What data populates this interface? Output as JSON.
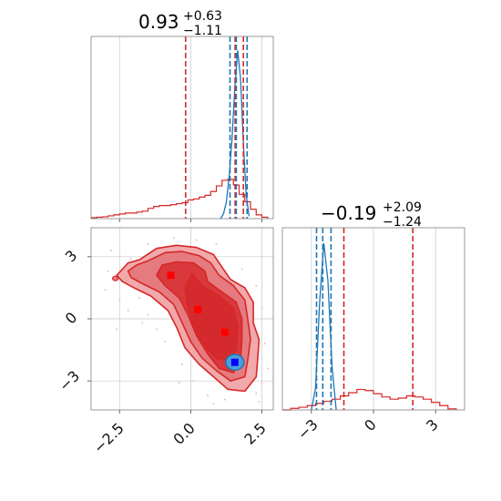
{
  "chart_data": {
    "type": "corner",
    "colors": {
      "red": "#d62728",
      "blue": "#1f77b4",
      "red_fill_light": "#f1a9ab",
      "red_fill_mid": "#e57b7e",
      "red_fill_dark": "#d9383c",
      "blue_fill": "#4d9fd8",
      "marker_red": "#ff0000",
      "marker_blue": "#0000ff",
      "grid": "#c8c8c8"
    },
    "params": [
      {
        "title_value": "0.93",
        "title_plus": "+0.63",
        "title_minus": "−1.11"
      },
      {
        "title_value": "−0.19",
        "title_plus": "+2.09",
        "title_minus": "−1.24"
      }
    ],
    "x_ticks_param1": [
      "−2.5",
      "0.0",
      "2.5"
    ],
    "x_tick_values_param1": [
      -2.5,
      0.0,
      2.5
    ],
    "y_ticks_param2": [
      "3",
      "0",
      "−3"
    ],
    "y_tick_values_param2": [
      3,
      0,
      -3
    ],
    "x_ticks_param2": [
      "−3",
      "0",
      "3"
    ],
    "x_tick_values_param2": [
      -3,
      0,
      3
    ],
    "xlim_param1": [
      -3.5,
      2.9
    ],
    "xlim_param2": [
      -4.4,
      4.4
    ],
    "ylim_param2": [
      -4.4,
      4.4
    ],
    "hist1_red": {
      "x": [
        -3.4,
        -3.2,
        -3.0,
        -2.8,
        -2.6,
        -2.4,
        -2.2,
        -2.0,
        -1.8,
        -1.6,
        -1.4,
        -1.2,
        -1.0,
        -0.8,
        -0.6,
        -0.4,
        -0.2,
        0.0,
        0.2,
        0.4,
        0.6,
        0.8,
        1.0,
        1.2,
        1.4,
        1.6,
        1.8,
        2.0,
        2.2,
        2.4,
        2.6
      ],
      "y": [
        0.2,
        0.3,
        0.4,
        0.6,
        0.8,
        1.0,
        1.2,
        1.2,
        1.4,
        1.6,
        2.2,
        2.6,
        2.8,
        2.8,
        3.0,
        3.2,
        3.4,
        4.0,
        4.2,
        4.6,
        5.0,
        5.8,
        7.0,
        8.2,
        8.4,
        7.2,
        5.2,
        3.6,
        2.0,
        0.8,
        0.3
      ]
    },
    "hist1_blue": {
      "x": [
        1.05,
        1.15,
        1.25,
        1.35,
        1.45,
        1.55,
        1.65,
        1.75,
        1.85,
        1.95,
        2.05
      ],
      "y": [
        0.0,
        1.0,
        3.5,
        9.0,
        17.0,
        28.0,
        36.0,
        30.0,
        16.0,
        5.0,
        0.5
      ]
    },
    "hist1_red_lines": [
      -0.18,
      1.56,
      1.85
    ],
    "hist1_blue_lines": [
      1.38,
      1.6,
      1.98
    ],
    "hist1_ymax": 38,
    "hist2_red": {
      "x": [
        -4.2,
        -3.8,
        -3.4,
        -3.0,
        -2.6,
        -2.2,
        -1.8,
        -1.4,
        -1.0,
        -0.6,
        -0.2,
        0.2,
        0.6,
        1.0,
        1.4,
        1.8,
        2.2,
        2.6,
        3.0,
        3.4,
        3.8
      ],
      "y": [
        0.0,
        0.3,
        0.5,
        0.8,
        1.2,
        1.6,
        2.0,
        2.6,
        3.2,
        3.8,
        3.6,
        3.0,
        2.4,
        2.0,
        2.2,
        2.6,
        2.4,
        2.0,
        1.4,
        0.8,
        0.2
      ]
    },
    "hist2_blue": {
      "x": [
        -3.0,
        -2.8,
        -2.6,
        -2.4,
        -2.2,
        -2.0,
        -1.8
      ],
      "y": [
        0.0,
        4.0,
        20.0,
        31.0,
        24.0,
        8.0,
        0.0
      ]
    },
    "hist2_red_lines": [
      -1.43,
      1.9
    ],
    "hist2_blue_lines": [
      -2.75,
      -2.45,
      -2.05
    ],
    "hist2_ymax": 33,
    "scatter_red_markers": [
      [
        -0.7,
        2.1
      ],
      [
        0.25,
        0.45
      ],
      [
        1.2,
        -0.65
      ]
    ],
    "scatter_blue_marker": [
      1.55,
      -2.1
    ],
    "kde_red_levels": [
      [
        [
          -2.2,
          2.7
        ],
        [
          -1.8,
          2.85
        ],
        [
          -1.2,
          3.4
        ],
        [
          -0.5,
          3.55
        ],
        [
          0.2,
          3.45
        ],
        [
          0.8,
          3.1
        ],
        [
          1.1,
          2.5
        ],
        [
          1.4,
          1.9
        ],
        [
          1.9,
          1.5
        ],
        [
          2.2,
          0.8
        ],
        [
          2.2,
          -0.2
        ],
        [
          2.4,
          -1.0
        ],
        [
          2.35,
          -2.0
        ],
        [
          2.3,
          -2.8
        ],
        [
          1.9,
          -3.5
        ],
        [
          1.3,
          -3.4
        ],
        [
          0.8,
          -2.8
        ],
        [
          0.3,
          -2.2
        ],
        [
          -0.2,
          -1.4
        ],
        [
          -0.5,
          -0.4
        ],
        [
          -0.8,
          0.4
        ],
        [
          -1.4,
          1.1
        ],
        [
          -2.0,
          1.5
        ],
        [
          -2.4,
          1.8
        ],
        [
          -2.6,
          2.1
        ],
        [
          -2.4,
          2.4
        ]
      ],
      [
        [
          -1.9,
          2.6
        ],
        [
          -1.5,
          2.8
        ],
        [
          -0.9,
          3.2
        ],
        [
          -0.3,
          3.25
        ],
        [
          0.3,
          3.05
        ],
        [
          0.7,
          2.7
        ],
        [
          1.0,
          2.1
        ],
        [
          1.5,
          1.6
        ],
        [
          1.9,
          0.9
        ],
        [
          2.0,
          0.0
        ],
        [
          2.1,
          -1.0
        ],
        [
          2.0,
          -2.0
        ],
        [
          1.9,
          -2.8
        ],
        [
          1.4,
          -3.0
        ],
        [
          0.9,
          -2.5
        ],
        [
          0.4,
          -1.9
        ],
        [
          0.0,
          -1.1
        ],
        [
          -0.3,
          -0.2
        ],
        [
          -0.6,
          0.7
        ],
        [
          -1.1,
          1.3
        ],
        [
          -1.7,
          1.7
        ],
        [
          -2.1,
          2.0
        ],
        [
          -2.2,
          2.3
        ]
      ],
      [
        [
          -1.0,
          2.6
        ],
        [
          -0.5,
          2.75
        ],
        [
          0.1,
          2.7
        ],
        [
          0.5,
          2.3
        ],
        [
          0.6,
          1.8
        ],
        [
          1.1,
          1.3
        ],
        [
          1.6,
          0.8
        ],
        [
          1.8,
          0.0
        ],
        [
          1.8,
          -1.0
        ],
        [
          1.75,
          -2.0
        ],
        [
          1.5,
          -2.6
        ],
        [
          1.0,
          -2.4
        ],
        [
          0.6,
          -1.7
        ],
        [
          0.2,
          -0.8
        ],
        [
          -0.1,
          0.2
        ],
        [
          -0.4,
          1.0
        ],
        [
          -0.9,
          1.6
        ],
        [
          -1.2,
          2.1
        ]
      ],
      [
        [
          0.05,
          2.2
        ],
        [
          0.4,
          1.6
        ],
        [
          1.0,
          1.1
        ],
        [
          1.5,
          0.5
        ],
        [
          1.65,
          -0.4
        ],
        [
          1.6,
          -1.5
        ],
        [
          1.35,
          -2.0
        ],
        [
          0.9,
          -1.9
        ],
        [
          0.4,
          -1.2
        ],
        [
          0.1,
          -0.4
        ],
        [
          -0.1,
          0.6
        ],
        [
          -0.2,
          1.5
        ]
      ]
    ],
    "kde_blue_core": [
      1.55,
      -2.1,
      0.32,
      0.38
    ],
    "scatter_red_points": [
      [
        -1.8,
        1.0
      ],
      [
        -2.1,
        2.9
      ],
      [
        -1.5,
        3.6
      ],
      [
        -2.5,
        0.9
      ],
      [
        -2.9,
        2.3
      ],
      [
        -1.2,
        -0.5
      ],
      [
        -0.9,
        -1.1
      ],
      [
        -0.3,
        -2.2
      ],
      [
        0.1,
        -3.0
      ],
      [
        0.6,
        -3.7
      ],
      [
        1.2,
        -3.9
      ],
      [
        2.3,
        -3.6
      ],
      [
        2.5,
        -3.1
      ],
      [
        2.6,
        -1.2
      ],
      [
        2.5,
        0.5
      ],
      [
        2.3,
        1.6
      ],
      [
        1.8,
        2.4
      ],
      [
        0.9,
        3.6
      ],
      [
        0.2,
        3.8
      ],
      [
        -0.6,
        3.9
      ],
      [
        -2.6,
        -0.5
      ],
      [
        -1.7,
        -0.2
      ],
      [
        -2.2,
        0.4
      ],
      [
        -3.0,
        1.4
      ],
      [
        -0.4,
        -3.1
      ],
      [
        0.8,
        -4.1
      ],
      [
        2.7,
        -2.4
      ],
      [
        2.4,
        -4.0
      ],
      [
        -1.5,
        0.2
      ],
      [
        -2.8,
        3.3
      ]
    ]
  }
}
